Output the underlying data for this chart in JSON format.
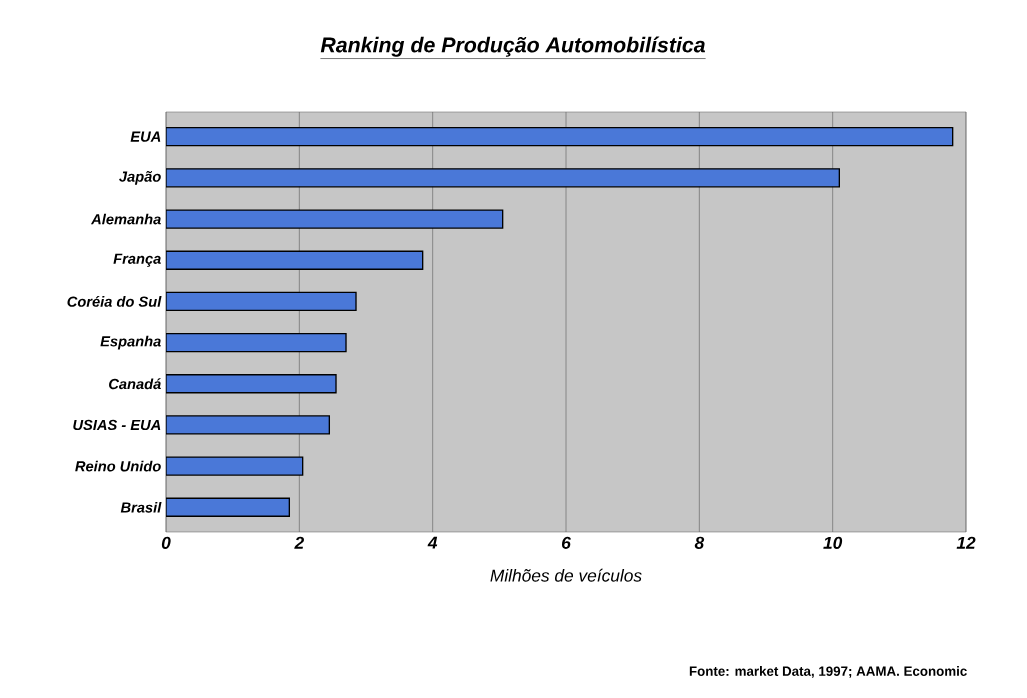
{
  "chart_data": {
    "type": "bar",
    "orientation": "horizontal",
    "title": "Ranking de Produção Automobilística",
    "categories": [
      "EUA",
      "Japão",
      "Alemanha",
      "França",
      "Coréia do Sul",
      "Espanha",
      "Canadá",
      "USIAS - EUA",
      "Reino Unido",
      "Brasil"
    ],
    "values": [
      11.8,
      10.1,
      5.05,
      3.85,
      2.85,
      2.7,
      2.55,
      2.45,
      2.05,
      1.85
    ],
    "color": "#4a78d8",
    "xlim": [
      0,
      12
    ],
    "xticks": [
      0,
      2,
      4,
      6,
      8,
      10,
      12
    ],
    "grid": "x",
    "xlabel": "Milhões de veículos",
    "annotations": [
      "Fonte: market Data, 1997; AAMA. Economic"
    ]
  }
}
